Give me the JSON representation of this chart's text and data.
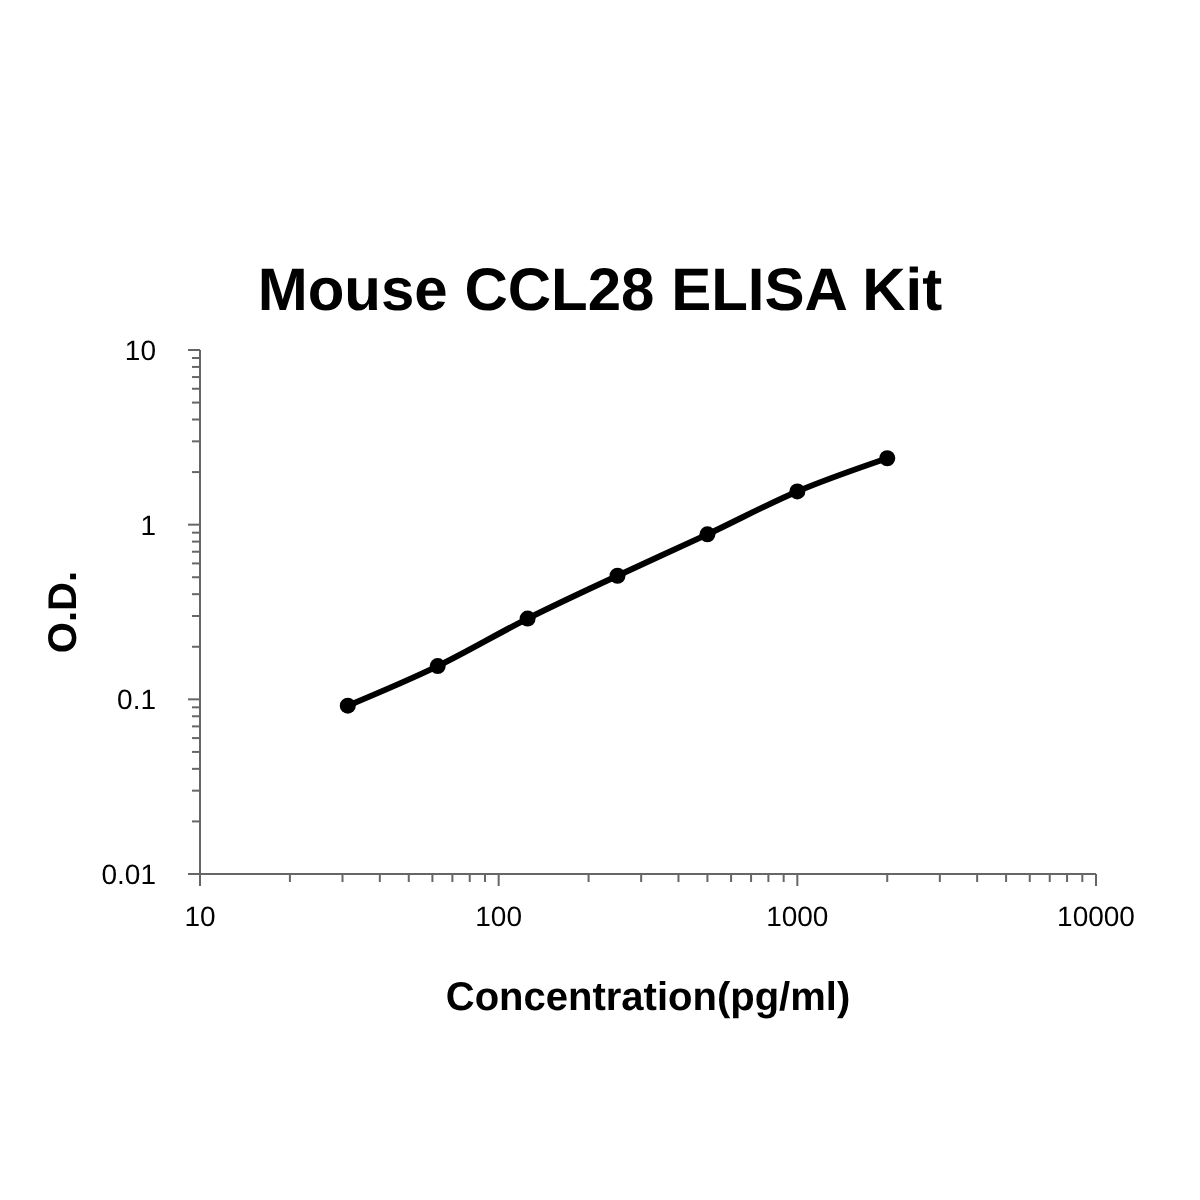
{
  "chart_data": {
    "type": "line",
    "title": "Mouse CCL28 ELISA Kit",
    "xlabel": "Concentration(pg/ml)",
    "ylabel": "O.D.",
    "log": "xy",
    "marker": "circle",
    "line_style": "solid",
    "grid": false,
    "xlim": [
      10,
      10000
    ],
    "ylim": [
      0.01,
      10
    ],
    "xticks": [
      10,
      {
        "value": 20,
        "label": null
      },
      {
        "value": 30,
        "label": null
      },
      {
        "value": 40,
        "label": null
      },
      {
        "value": 50,
        "label": null
      },
      {
        "value": 60,
        "label": null
      },
      {
        "value": 70,
        "label": null
      },
      {
        "value": 80,
        "label": null
      },
      {
        "value": 90,
        "label": null
      },
      100,
      {
        "value": 200,
        "label": null
      },
      {
        "value": 300,
        "label": null
      },
      {
        "value": 400,
        "label": null
      },
      {
        "value": 500,
        "label": null
      },
      {
        "value": 600,
        "label": null
      },
      {
        "value": 700,
        "label": null
      },
      {
        "value": 800,
        "label": null
      },
      {
        "value": 900,
        "label": null
      },
      1000,
      {
        "value": 2000,
        "label": null
      },
      {
        "value": 3000,
        "label": null
      },
      {
        "value": 4000,
        "label": null
      },
      {
        "value": 5000,
        "label": null
      },
      {
        "value": 6000,
        "label": null
      },
      {
        "value": 7000,
        "label": null
      },
      {
        "value": 8000,
        "label": null
      },
      {
        "value": 9000,
        "label": null
      },
      10000
    ],
    "yticks": [
      0.01,
      {
        "value": 0.02,
        "label": null
      },
      {
        "value": 0.03,
        "label": null
      },
      {
        "value": 0.04,
        "label": null
      },
      {
        "value": 0.05,
        "label": null
      },
      {
        "value": 0.06,
        "label": null
      },
      {
        "value": 0.07,
        "label": null
      },
      {
        "value": 0.08,
        "label": null
      },
      {
        "value": 0.09,
        "label": null
      },
      0.1,
      {
        "value": 0.2,
        "label": null
      },
      {
        "value": 0.3,
        "label": null
      },
      {
        "value": 0.4,
        "label": null
      },
      {
        "value": 0.5,
        "label": null
      },
      {
        "value": 0.6,
        "label": null
      },
      {
        "value": 0.7,
        "label": null
      },
      {
        "value": 0.8,
        "label": null
      },
      {
        "value": 0.9,
        "label": null
      },
      1,
      {
        "value": 2,
        "label": null
      },
      {
        "value": 3,
        "label": null
      },
      {
        "value": 4,
        "label": null
      },
      {
        "value": 5,
        "label": null
      },
      {
        "value": 6,
        "label": null
      },
      {
        "value": 7,
        "label": null
      },
      {
        "value": 8,
        "label": null
      },
      {
        "value": 9,
        "label": null
      },
      10
    ],
    "x": [
      31.25,
      62.5,
      125,
      250,
      500,
      1000,
      2000
    ],
    "series": [
      {
        "color": "#000000",
        "values": [
          0.092,
          0.155,
          0.29,
          0.51,
          0.88,
          1.55,
          2.4
        ]
      }
    ]
  }
}
